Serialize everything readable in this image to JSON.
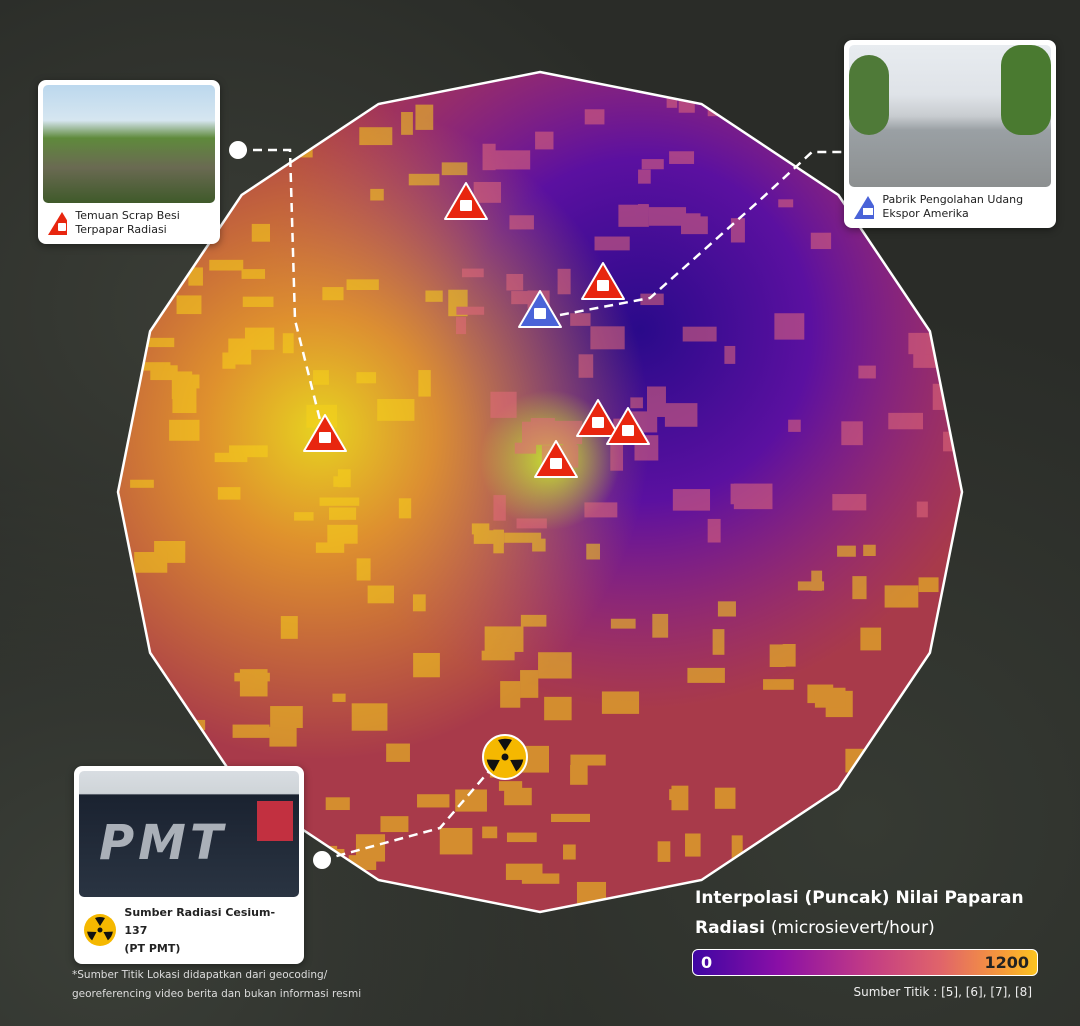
{
  "callouts": {
    "scrap": {
      "label": "Temuan Scrap Besi Terpapar Radiasi",
      "icon": "radiation-warning-triangle-icon",
      "color": "#e8260f"
    },
    "factory": {
      "label": "Pabrik Pengolahan Udang Ekspor Amerika",
      "icon": "factory-triangle-icon",
      "color": "#4a63d8"
    },
    "source": {
      "label_line1": "Sumber Radiasi Cesium-137",
      "label_line2": "(PT PMT)",
      "icon": "radiation-trefoil-icon",
      "color": "#f5b800",
      "sign_text": "PMT"
    }
  },
  "legend": {
    "title_bold": "Interpolasi (Puncak) Nilai Paparan Radiasi",
    "title_unit": "(microsievert/hour)",
    "min": "0",
    "max": "1200",
    "colors": [
      "#3f06a3",
      "#8a0fa6",
      "#c13a86",
      "#e0646a",
      "#f79a3a",
      "#fbc320"
    ],
    "source": "Sumber Titik : [5], [6], [7], [8]"
  },
  "note": "*Sumber Titik Lokasi didapatkan dari geocoding/ georeferencing video berita dan bukan informasi resmi"
}
